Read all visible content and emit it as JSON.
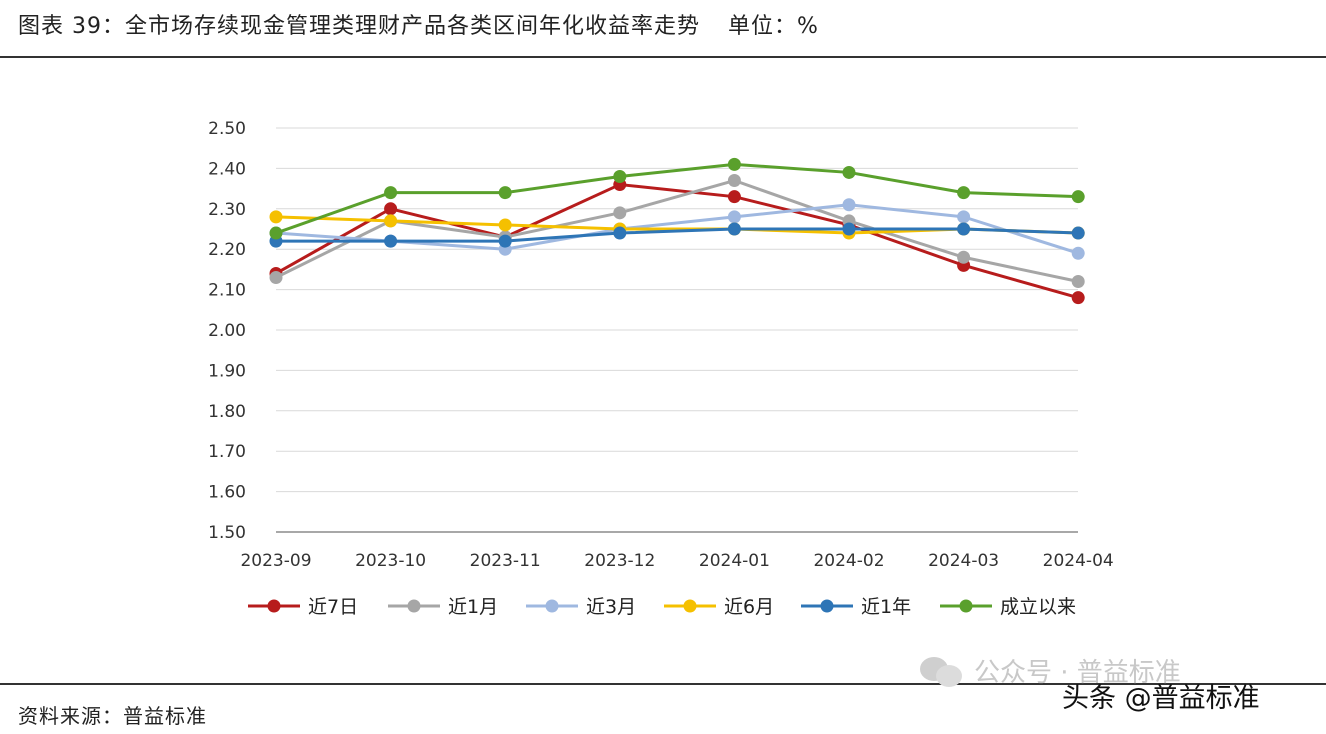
{
  "header": {
    "title": "图表 39：全市场存续现金管理类理财产品各类区间年化收益率走势",
    "unit": "单位：%"
  },
  "footer": {
    "source": "资料来源：普益标准",
    "watermark_text": "公众号 · 普益标准",
    "watermark_icon": "wechat-icon",
    "credit": "头条 @普益标准"
  },
  "chart_data": {
    "type": "line",
    "title": "",
    "xlabel": "",
    "ylabel": "",
    "ylim": [
      1.5,
      2.5
    ],
    "yticks": [
      "1.50",
      "1.60",
      "1.70",
      "1.80",
      "1.90",
      "2.00",
      "2.10",
      "2.20",
      "2.30",
      "2.40",
      "2.50"
    ],
    "grid": true,
    "legend_position": "bottom",
    "categories": [
      "2023-09",
      "2023-10",
      "2023-11",
      "2023-12",
      "2024-01",
      "2024-02",
      "2024-03",
      "2024-04"
    ],
    "series": [
      {
        "name": "近7日",
        "color": "#b71c1c",
        "values": [
          2.14,
          2.3,
          2.23,
          2.36,
          2.33,
          2.26,
          2.16,
          2.08
        ]
      },
      {
        "name": "近1月",
        "color": "#a6a6a6",
        "values": [
          2.13,
          2.27,
          2.23,
          2.29,
          2.37,
          2.27,
          2.18,
          2.12
        ]
      },
      {
        "name": "近3月",
        "color": "#9fb8e0",
        "values": [
          2.24,
          2.22,
          2.2,
          2.25,
          2.28,
          2.31,
          2.28,
          2.19
        ]
      },
      {
        "name": "近6月",
        "color": "#f5c000",
        "values": [
          2.28,
          2.27,
          2.26,
          2.25,
          2.25,
          2.24,
          2.25,
          2.24
        ]
      },
      {
        "name": "近1年",
        "color": "#2e75b6",
        "values": [
          2.22,
          2.22,
          2.22,
          2.24,
          2.25,
          2.25,
          2.25,
          2.24
        ]
      },
      {
        "name": "成立以来",
        "color": "#5aa02c",
        "values": [
          2.24,
          2.34,
          2.34,
          2.38,
          2.41,
          2.39,
          2.34,
          2.33
        ]
      }
    ]
  }
}
